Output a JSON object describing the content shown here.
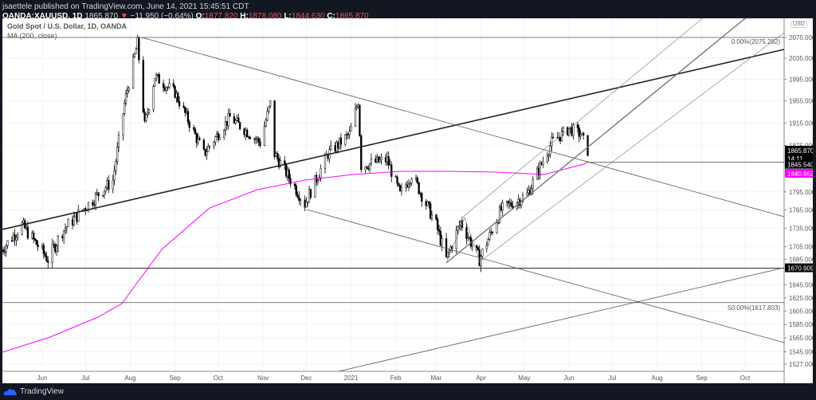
{
  "header": {
    "publisher": "jsaettele published on TradingView.com, June 14, 2021 15:45:51 CDT",
    "symbol": "OANDA:XAUUSD, 1D",
    "last": "1865.870",
    "change": "−11.950 (−0.64%)",
    "o_label": "O:",
    "o": "1877.820",
    "h_label": "H:",
    "h": "1878.080",
    "l_label": "L:",
    "l": "1844.630",
    "c_label": "C:",
    "c": "1865.870",
    "down_arrow": "▼"
  },
  "legend": {
    "title": "Gold Spot / U.S. Dollar, 1D, OANDA",
    "ma": "MA (200, close)"
  },
  "currency": "USD",
  "footer": {
    "brand": "TradingView"
  },
  "colors": {
    "up": "#ffffff",
    "down": "#000000",
    "ma": "#ff00ff",
    "trend": "#333333"
  },
  "chart_data": {
    "type": "candlestick",
    "scale": "log",
    "ylim": [
      1527,
      2120
    ],
    "y_ticks": [
      "2075.000",
      "2035.000",
      "1995.000",
      "1955.000",
      "1915.000",
      "1875.000",
      "1795.000",
      "1765.000",
      "1735.000",
      "1705.000",
      "1685.000",
      "1645.000",
      "1625.000",
      "1605.000",
      "1585.000",
      "1565.000",
      "1545.000",
      "1527.000"
    ],
    "x_ticks": [
      "Jun",
      "Jul",
      "Aug",
      "Sep",
      "Oct",
      "Nov",
      "Dec",
      "2021",
      "Feb",
      "Mar",
      "Apr",
      "May",
      "Jun",
      "Jul",
      "Aug",
      "Sep",
      "Oct"
    ],
    "approx_closes": [
      [
        "2020-05-04",
        1700
      ],
      [
        "2020-05-18",
        1740
      ],
      [
        "2020-06-05",
        1685
      ],
      [
        "2020-06-15",
        1730
      ],
      [
        "2020-07-01",
        1770
      ],
      [
        "2020-07-20",
        1815
      ],
      [
        "2020-07-28",
        1950
      ],
      [
        "2020-08-06",
        2065
      ],
      [
        "2020-08-11",
        1910
      ],
      [
        "2020-08-18",
        2000
      ],
      [
        "2020-09-01",
        1970
      ],
      [
        "2020-09-21",
        1860
      ],
      [
        "2020-10-09",
        1925
      ],
      [
        "2020-10-30",
        1880
      ],
      [
        "2020-11-06",
        1950
      ],
      [
        "2020-11-09",
        1860
      ],
      [
        "2020-11-30",
        1775
      ],
      [
        "2020-12-16",
        1860
      ],
      [
        "2020-12-31",
        1895
      ],
      [
        "2021-01-06",
        1955
      ],
      [
        "2021-01-08",
        1840
      ],
      [
        "2021-01-26",
        1850
      ],
      [
        "2021-02-04",
        1790
      ],
      [
        "2021-02-12",
        1825
      ],
      [
        "2021-03-01",
        1740
      ],
      [
        "2021-03-08",
        1685
      ],
      [
        "2021-03-18",
        1745
      ],
      [
        "2021-03-31",
        1685
      ],
      [
        "2021-04-15",
        1765
      ],
      [
        "2021-05-03",
        1790
      ],
      [
        "2021-05-20",
        1880
      ],
      [
        "2021-06-01",
        1905
      ],
      [
        "2021-06-09",
        1895
      ],
      [
        "2021-06-14",
        1866
      ]
    ],
    "price_labels": [
      {
        "value": "1865.870",
        "sub": "14:11",
        "bg": "#000000"
      },
      {
        "value": "1845.540",
        "bg": "#000000"
      },
      {
        "value": "1840.962",
        "bg": "#ff00ff"
      },
      {
        "value": "1670.909",
        "bg": "#000000"
      }
    ],
    "annotations": [
      "0.00%(2075.282)",
      "50.00%(1617.803)"
    ]
  }
}
